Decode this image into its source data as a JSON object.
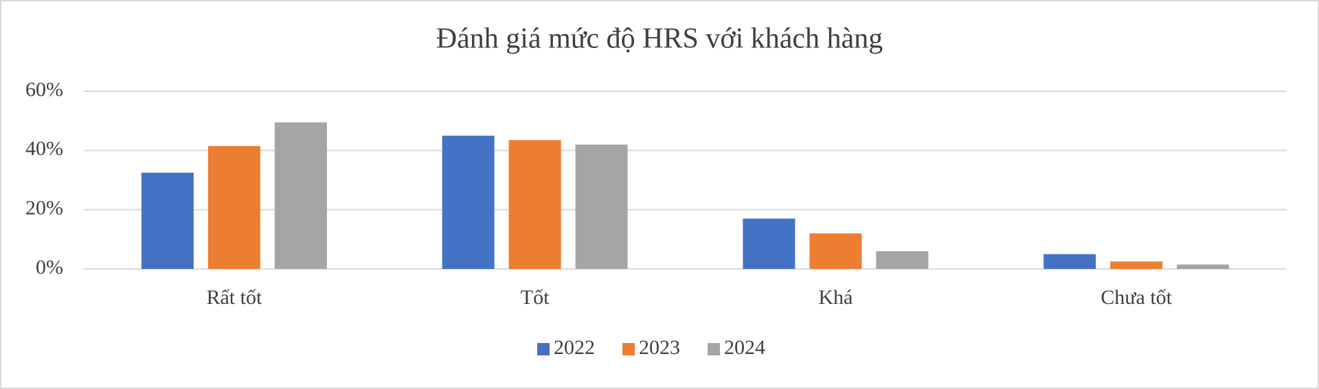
{
  "chart_data": {
    "type": "bar",
    "title": "Đánh giá mức độ HRS với khách hàng",
    "categories": [
      "Rất tốt",
      "Tốt",
      "Khá",
      "Chưa tốt"
    ],
    "series": [
      {
        "name": "2022",
        "color": "#4472c4",
        "values": [
          32.5,
          45,
          17,
          5
        ]
      },
      {
        "name": "2023",
        "color": "#ed7d31",
        "values": [
          41.5,
          43.5,
          12,
          2.5
        ]
      },
      {
        "name": "2024",
        "color": "#a5a5a5",
        "values": [
          49.5,
          42,
          6,
          1.5
        ]
      }
    ],
    "ylim": [
      0,
      60
    ],
    "yticks": [
      {
        "value": 0,
        "label": "0%"
      },
      {
        "value": 20,
        "label": "20%"
      },
      {
        "value": 40,
        "label": "40%"
      },
      {
        "value": 60,
        "label": "60%"
      }
    ],
    "grid": true,
    "legend": "bottom"
  }
}
